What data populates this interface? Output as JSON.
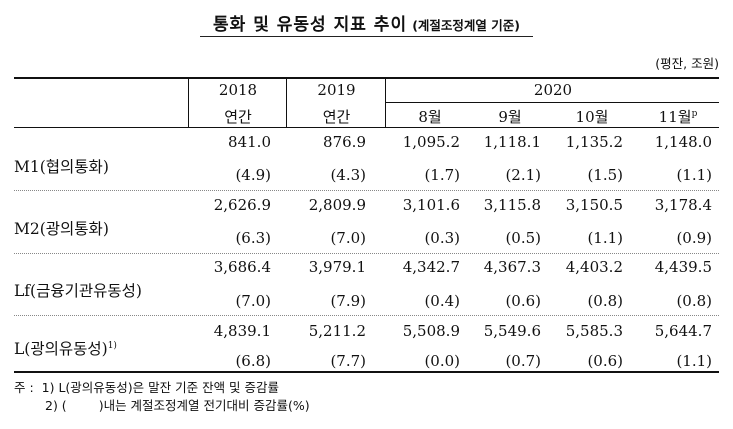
{
  "title": {
    "main": "통화 및 유동성 지표 추이",
    "sub": "(계절조정계열 기준)"
  },
  "unit": "(평잔, 조원)",
  "header": {
    "years": [
      "2018",
      "2019",
      "2020"
    ],
    "periods": [
      "연간",
      "연간",
      "8월",
      "9월",
      "10월",
      "11월"
    ],
    "preliminary_mark": "p"
  },
  "rows": [
    {
      "label": "M1(협의통화)",
      "sup": "",
      "values": [
        "841.0",
        "876.9",
        "1,095.2",
        "1,118.1",
        "1,135.2",
        "1,148.0"
      ],
      "changes": [
        "(4.9)",
        "(4.3)",
        "(1.7)",
        "(2.1)",
        "(1.5)",
        "(1.1)"
      ]
    },
    {
      "label": "M2(광의통화)",
      "sup": "",
      "values": [
        "2,626.9",
        "2,809.9",
        "3,101.6",
        "3,115.8",
        "3,150.5",
        "3,178.4"
      ],
      "changes": [
        "(6.3)",
        "(7.0)",
        "(0.3)",
        "(0.5)",
        "(1.1)",
        "(0.9)"
      ]
    },
    {
      "label": "Lf(금융기관유동성)",
      "sup": "",
      "values": [
        "3,686.4",
        "3,979.1",
        "4,342.7",
        "4,367.3",
        "4,403.2",
        "4,439.5"
      ],
      "changes": [
        "(7.0)",
        "(7.9)",
        "(0.4)",
        "(0.6)",
        "(0.8)",
        "(0.8)"
      ]
    },
    {
      "label": "L(광의유동성)",
      "sup": "1)",
      "values": [
        "4,839.1",
        "5,211.2",
        "5,508.9",
        "5,549.6",
        "5,585.3",
        "5,644.7"
      ],
      "changes": [
        "(6.8)",
        "(7.7)",
        "(0.0)",
        "(0.7)",
        "(0.6)",
        "(1.1)"
      ]
    }
  ],
  "notes": {
    "prefix": "주 :",
    "note1": "1) L(광의유동성)은 말잔 기준 잔액 및 증감률",
    "note2_a": "2) (",
    "note2_b": ")내는 계절조정계열 전기대비 증감률(%)"
  }
}
